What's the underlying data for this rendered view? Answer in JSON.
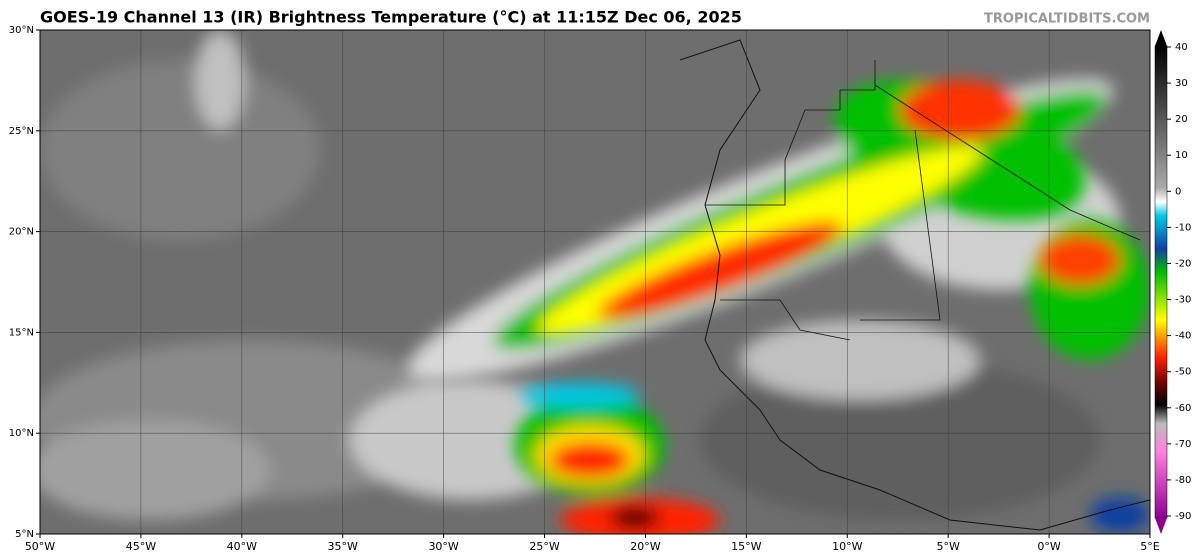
{
  "header": {
    "title": "GOES-19 Channel 13 (IR) Brightness Temperature (°C) at 11:15Z Dec 06, 2025",
    "credit": "TROPICALTIDBITS.COM"
  },
  "map": {
    "xlim": [
      -50,
      5
    ],
    "ylim": [
      5,
      30
    ],
    "xticks": [
      {
        "value": -50,
        "label": "50°W"
      },
      {
        "value": -45,
        "label": "45°W"
      },
      {
        "value": -40,
        "label": "40°W"
      },
      {
        "value": -35,
        "label": "35°W"
      },
      {
        "value": -30,
        "label": "30°W"
      },
      {
        "value": -25,
        "label": "25°W"
      },
      {
        "value": -20,
        "label": "20°W"
      },
      {
        "value": -15,
        "label": "15°W"
      },
      {
        "value": -10,
        "label": "10°W"
      },
      {
        "value": -5,
        "label": "5°W"
      },
      {
        "value": 0,
        "label": "0°W"
      },
      {
        "value": 5,
        "label": "5°E"
      }
    ],
    "yticks": [
      {
        "value": 30,
        "label": "30°N"
      },
      {
        "value": 25,
        "label": "25°N"
      },
      {
        "value": 20,
        "label": "20°N"
      },
      {
        "value": 15,
        "label": "15°N"
      },
      {
        "value": 10,
        "label": "10°N"
      },
      {
        "value": 5,
        "label": "5°N"
      }
    ]
  },
  "colorbar": {
    "ticks": [
      40,
      30,
      20,
      10,
      0,
      -10,
      -20,
      -30,
      -40,
      -50,
      -60,
      -70,
      -80,
      -90
    ]
  }
}
